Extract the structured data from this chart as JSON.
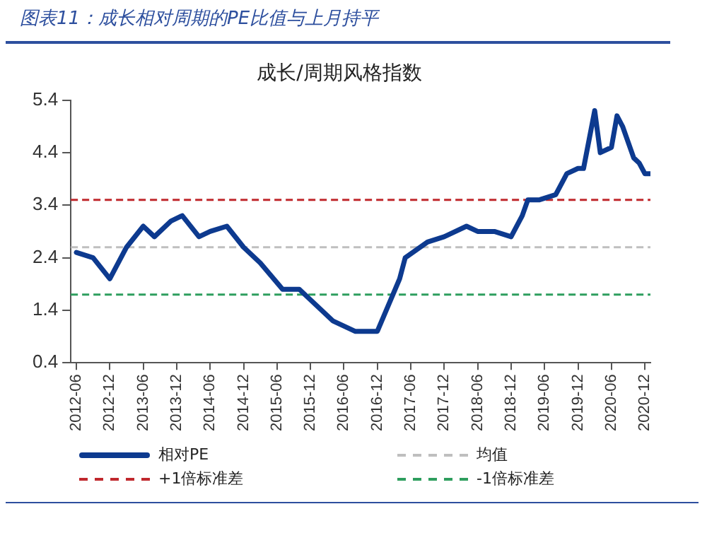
{
  "chart_data": {
    "type": "line",
    "title": "图表11：成长相对周期的PE比值与上月持平",
    "subtitle": "成长/周期风格指数",
    "series": [
      {
        "name": "相对PE",
        "color": "#0d3a8f",
        "x": [
          "2012-06",
          "2012-09",
          "2012-12",
          "2013-03",
          "2013-06",
          "2013-08",
          "2013-11",
          "2014-01",
          "2014-04",
          "2014-06",
          "2014-09",
          "2014-12",
          "2015-03",
          "2015-07",
          "2015-10",
          "2016-01",
          "2016-04",
          "2016-08",
          "2016-12",
          "2017-04",
          "2017-05",
          "2017-09",
          "2017-12",
          "2018-04",
          "2018-06",
          "2018-09",
          "2018-12",
          "2019-02",
          "2019-03",
          "2019-05",
          "2019-08",
          "2019-10",
          "2019-12",
          "2020-01",
          "2020-03",
          "2020-04",
          "2020-06",
          "2020-07",
          "2020-08",
          "2020-10",
          "2020-11",
          "2020-12",
          "2021-01"
        ],
        "values": [
          2.5,
          2.4,
          2.0,
          2.6,
          3.0,
          2.8,
          3.1,
          3.2,
          2.8,
          2.9,
          3.0,
          2.6,
          2.3,
          1.8,
          1.8,
          1.5,
          1.2,
          1.0,
          1.0,
          2.0,
          2.4,
          2.7,
          2.8,
          3.0,
          2.9,
          2.9,
          2.8,
          3.2,
          3.5,
          3.5,
          3.6,
          4.0,
          4.1,
          4.1,
          5.2,
          4.4,
          4.5,
          5.1,
          4.9,
          4.3,
          4.2,
          4.0,
          4.0
        ]
      }
    ],
    "ref_lines": [
      {
        "axis": "y",
        "value": 2.6,
        "label": "均值",
        "color": "#bfbfbf",
        "line_style": "dashed"
      },
      {
        "axis": "y",
        "value": 3.5,
        "label": "+1倍标准差",
        "color": "#c0282d",
        "line_style": "dashed"
      },
      {
        "axis": "y",
        "value": 1.7,
        "label": "-1倍标准差",
        "color": "#2e9e5e",
        "line_style": "dashed"
      }
    ],
    "xlim": [
      "2012-05",
      "2021-01"
    ],
    "xticks": [
      "2012-06",
      "2012-12",
      "2013-06",
      "2013-12",
      "2014-06",
      "2014-12",
      "2015-06",
      "2015-12",
      "2016-06",
      "2016-12",
      "2017-06",
      "2017-12",
      "2018-06",
      "2018-12",
      "2019-06",
      "2019-12",
      "2020-06",
      "2020-12"
    ],
    "ylim": [
      0.4,
      5.4
    ],
    "yticks": [
      0.4,
      1.4,
      2.4,
      3.4,
      4.4,
      5.4
    ],
    "grid": false,
    "legend": "bottom",
    "marker": "none",
    "line_style": "solid"
  }
}
